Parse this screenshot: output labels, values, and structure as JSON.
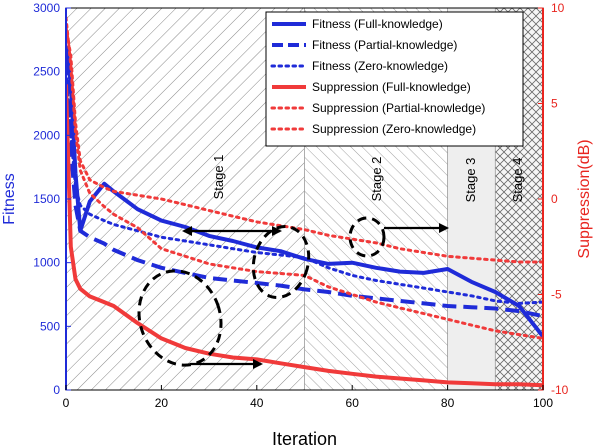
{
  "chart_data": {
    "type": "line",
    "title": "",
    "xlabel": "Iteration",
    "ylabel": "Fitness",
    "y2label": "Suppression(dB)",
    "xlim": [
      0,
      100
    ],
    "ylim": [
      0,
      3000
    ],
    "y2lim": [
      -10,
      10
    ],
    "x_ticks": [
      "0",
      "20",
      "40",
      "60",
      "80",
      "100"
    ],
    "y_ticks": [
      "0",
      "500",
      "1000",
      "1500",
      "2000",
      "2500",
      "3000"
    ],
    "y2_ticks": [
      "-10",
      "-5",
      "0",
      "5",
      "10"
    ],
    "grid": false,
    "legend_position": "top-right",
    "stages": [
      {
        "label": "Stage 1",
        "from": 0,
        "to": 50
      },
      {
        "label": "Stage 2",
        "from": 50,
        "to": 80
      },
      {
        "label": "Stage 3",
        "from": 80,
        "to": 90
      },
      {
        "label": "Stage 4",
        "from": 90,
        "to": 100
      }
    ],
    "x": [
      0,
      1,
      2,
      3,
      5,
      8,
      10,
      15,
      20,
      25,
      30,
      35,
      40,
      45,
      50,
      55,
      60,
      65,
      70,
      75,
      80,
      85,
      90,
      95,
      100
    ],
    "series": [
      {
        "name": "Fitness (Full-knowledge)",
        "axis": "left",
        "style": "solid",
        "color": "#1f2bd8",
        "values": [
          2700,
          2400,
          1700,
          1250,
          1480,
          1620,
          1560,
          1420,
          1330,
          1280,
          1210,
          1170,
          1120,
          1090,
          1030,
          990,
          1000,
          960,
          930,
          920,
          950,
          850,
          770,
          660,
          420
        ]
      },
      {
        "name": "Fitness (Partial-knowledge)",
        "axis": "left",
        "style": "dash",
        "color": "#1f2bd8",
        "values": [
          2600,
          1900,
          1450,
          1250,
          1200,
          1150,
          1100,
          1020,
          960,
          920,
          880,
          860,
          840,
          820,
          790,
          770,
          740,
          720,
          700,
          680,
          660,
          650,
          640,
          620,
          580
        ]
      },
      {
        "name": "Fitness (Zero-knowledge)",
        "axis": "left",
        "style": "dot",
        "color": "#1f2bd8",
        "values": [
          2500,
          2000,
          1600,
          1450,
          1380,
          1330,
          1300,
          1250,
          1200,
          1170,
          1140,
          1110,
          1080,
          1060,
          1040,
          960,
          900,
          860,
          830,
          800,
          770,
          740,
          700,
          680,
          690
        ]
      },
      {
        "name": "Suppression (Full-knowledge)",
        "axis": "right",
        "style": "solid",
        "color": "#f03a3a",
        "values": [
          6.0,
          -2.5,
          -4.2,
          -4.7,
          -5.1,
          -5.4,
          -5.6,
          -6.5,
          -7.3,
          -7.8,
          -8.1,
          -8.3,
          -8.4,
          -8.6,
          -8.8,
          -9.0,
          -9.15,
          -9.3,
          -9.4,
          -9.5,
          -9.6,
          -9.65,
          -9.7,
          -9.7,
          -9.75
        ]
      },
      {
        "name": "Suppression (Partial-knowledge)",
        "axis": "right",
        "style": "dot",
        "color": "#f03a3a",
        "values": [
          9.5,
          7.0,
          3.5,
          1.5,
          0.3,
          -0.4,
          -0.8,
          -1.5,
          -2.6,
          -3.0,
          -3.4,
          -3.6,
          -3.8,
          -3.9,
          -4.0,
          -4.6,
          -5.0,
          -5.4,
          -5.7,
          -6.0,
          -6.3,
          -6.6,
          -6.9,
          -7.1,
          -7.3
        ]
      },
      {
        "name": "Suppression (Zero-knowledge)",
        "axis": "right",
        "style": "dot",
        "color": "#f03a3a",
        "values": [
          9.0,
          7.5,
          4.0,
          2.0,
          1.0,
          0.6,
          0.4,
          0.2,
          0.0,
          -0.3,
          -0.6,
          -0.9,
          -1.2,
          -1.4,
          -1.6,
          -1.9,
          -2.1,
          -2.3,
          -2.6,
          -2.8,
          -3.0,
          -3.1,
          -3.2,
          -3.3,
          -3.3
        ]
      }
    ]
  }
}
